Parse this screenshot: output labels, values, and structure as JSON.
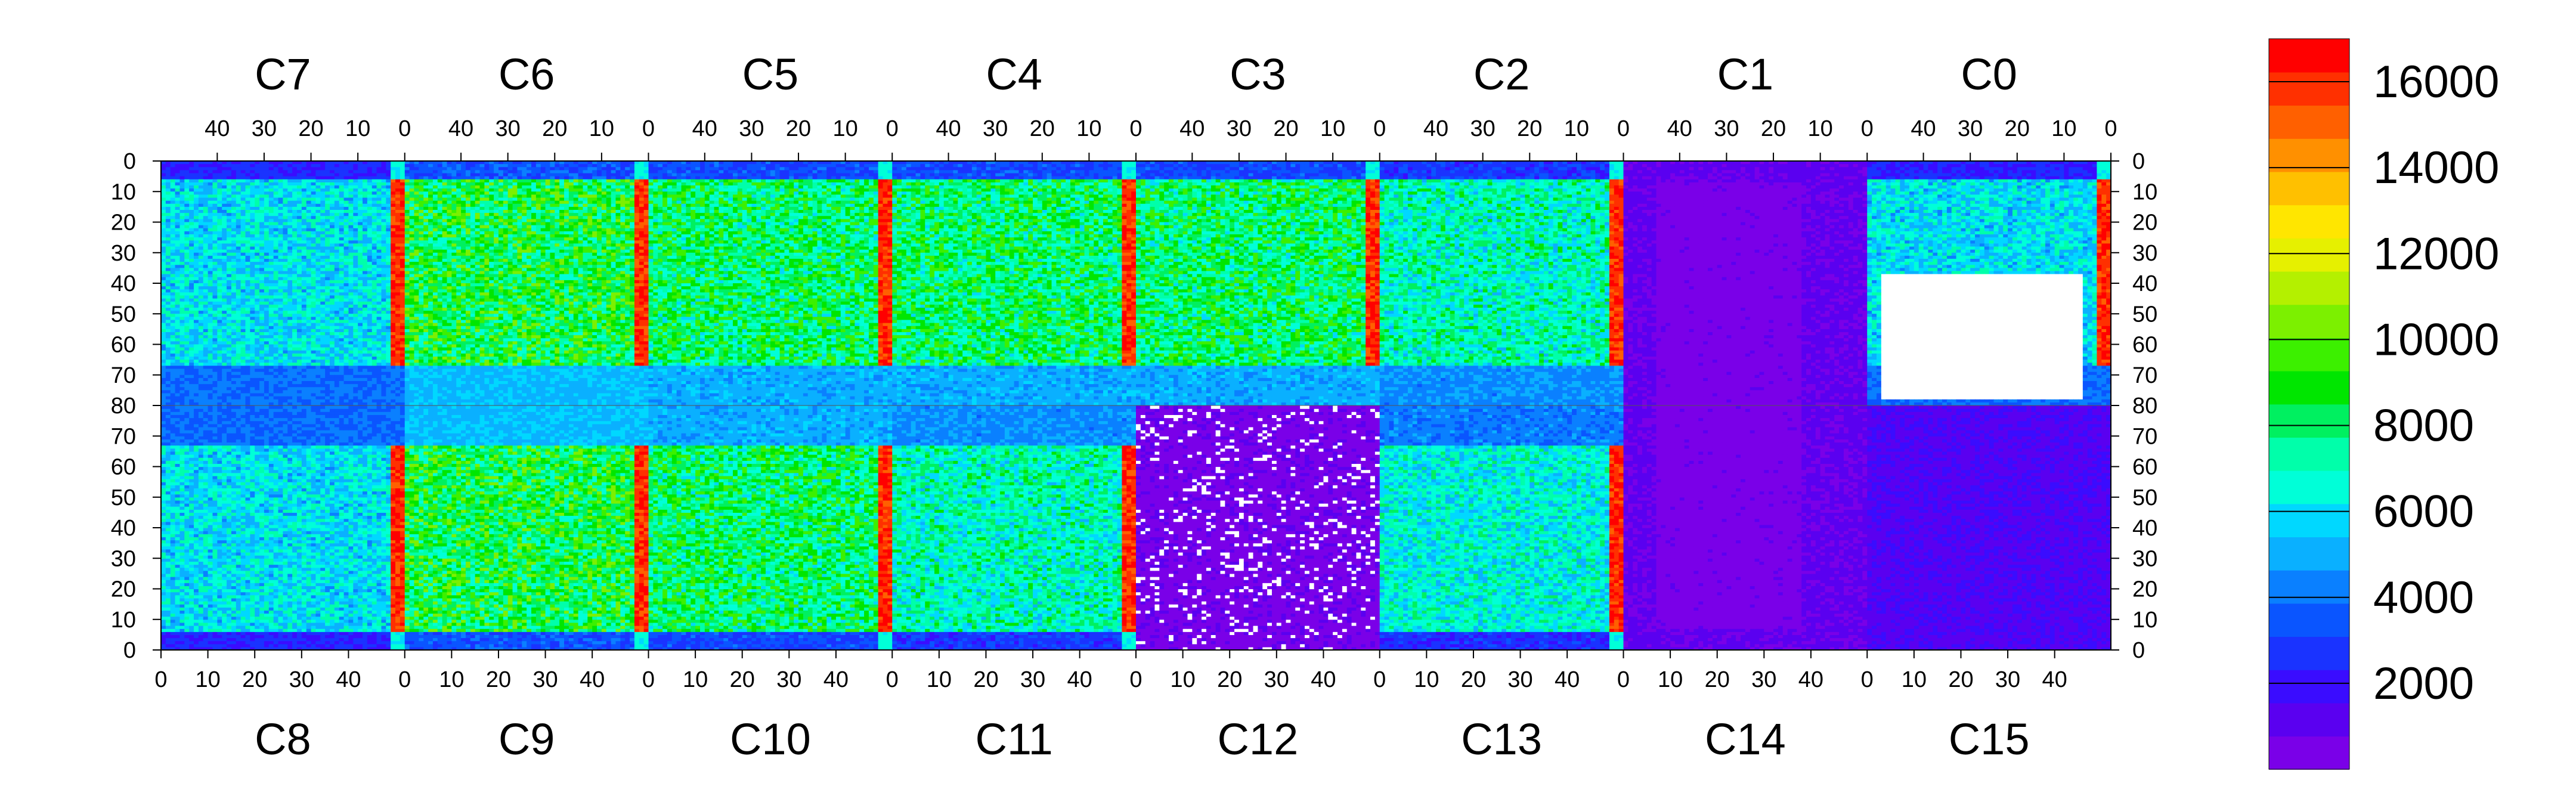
{
  "chart_data": {
    "type": "heatmap",
    "top_chip_labels": [
      "C7",
      "C6",
      "C5",
      "C4",
      "C3",
      "C2",
      "C1",
      "C0"
    ],
    "bottom_chip_labels": [
      "C8",
      "C9",
      "C10",
      "C11",
      "C12",
      "C13",
      "C14",
      "C15"
    ],
    "top_axis_ticks": [
      "40",
      "30",
      "20",
      "10",
      "0"
    ],
    "bottom_axis_ticks": [
      "0",
      "10",
      "20",
      "30",
      "40"
    ],
    "left_axis_ticks": [
      "0",
      "10",
      "20",
      "30",
      "40",
      "50",
      "60",
      "70",
      "80",
      "70",
      "60",
      "50",
      "40",
      "30",
      "20",
      "10",
      "0"
    ],
    "right_axis_ticks": [
      "0",
      "10",
      "20",
      "30",
      "40",
      "50",
      "60",
      "70",
      "80",
      "70",
      "60",
      "50",
      "40",
      "30",
      "20",
      "10",
      "0"
    ],
    "columns_per_chip": 52,
    "rows_per_half": 80,
    "colorbar": {
      "min": 0,
      "max": 17000,
      "tick_values": [
        2000,
        4000,
        6000,
        8000,
        10000,
        12000,
        14000,
        16000
      ],
      "tick_labels": [
        "2000",
        "4000",
        "6000",
        "8000",
        "10000",
        "12000",
        "14000",
        "16000"
      ]
    },
    "chip_summaries": [
      {
        "chip": "C7",
        "typical_counts": 6000
      },
      {
        "chip": "C6",
        "typical_counts": 8500
      },
      {
        "chip": "C5",
        "typical_counts": 8000
      },
      {
        "chip": "C4",
        "typical_counts": 8000
      },
      {
        "chip": "C3",
        "typical_counts": 8000
      },
      {
        "chip": "C2",
        "typical_counts": 7000
      },
      {
        "chip": "C1",
        "typical_counts": 500
      },
      {
        "chip": "C0",
        "typical_counts": 6000
      },
      {
        "chip": "C8",
        "typical_counts": 6000
      },
      {
        "chip": "C9",
        "typical_counts": 8500
      },
      {
        "chip": "C10",
        "typical_counts": 8000
      },
      {
        "chip": "C11",
        "typical_counts": 7000
      },
      {
        "chip": "C12",
        "typical_counts": 300
      },
      {
        "chip": "C13",
        "typical_counts": 6500
      },
      {
        "chip": "C14",
        "typical_counts": 500
      },
      {
        "chip": "C15",
        "typical_counts": 1000
      }
    ]
  }
}
